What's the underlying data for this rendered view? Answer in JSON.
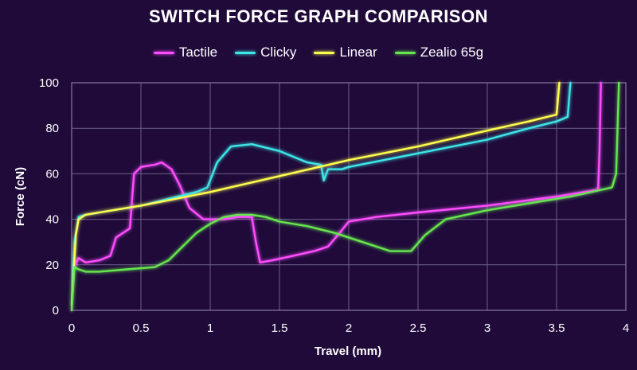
{
  "chart_data": {
    "type": "line",
    "title": "SWITCH FORCE GRAPH COMPARISON",
    "xlabel": "Travel (mm)",
    "ylabel": "Force (cN)",
    "xlim": [
      0,
      4
    ],
    "ylim": [
      0,
      100
    ],
    "x_ticks": [
      "0",
      "0.5",
      "1",
      "1.5",
      "2",
      "2.5",
      "3",
      "3.5",
      "4"
    ],
    "y_ticks": [
      "0",
      "20",
      "40",
      "60",
      "80",
      "100"
    ],
    "grid": true,
    "legend_position": "top-center",
    "series": [
      {
        "name": "Tactile",
        "color": "#ff4dff",
        "points": [
          [
            0.0,
            0
          ],
          [
            0.02,
            19
          ],
          [
            0.05,
            23
          ],
          [
            0.1,
            21
          ],
          [
            0.2,
            22
          ],
          [
            0.28,
            24
          ],
          [
            0.32,
            32
          ],
          [
            0.42,
            36
          ],
          [
            0.45,
            60
          ],
          [
            0.5,
            63
          ],
          [
            0.6,
            64
          ],
          [
            0.65,
            65
          ],
          [
            0.72,
            62
          ],
          [
            0.78,
            55
          ],
          [
            0.85,
            45
          ],
          [
            0.95,
            40
          ],
          [
            1.1,
            40
          ],
          [
            1.2,
            41
          ],
          [
            1.3,
            41
          ],
          [
            1.33,
            30
          ],
          [
            1.36,
            21
          ],
          [
            1.45,
            22
          ],
          [
            1.6,
            24
          ],
          [
            1.75,
            26
          ],
          [
            1.85,
            28
          ],
          [
            1.92,
            33
          ],
          [
            2.0,
            39
          ],
          [
            2.2,
            41
          ],
          [
            2.5,
            43
          ],
          [
            3.0,
            46
          ],
          [
            3.5,
            50
          ],
          [
            3.8,
            53
          ],
          [
            3.81,
            70
          ],
          [
            3.82,
            100
          ]
        ]
      },
      {
        "name": "Clicky",
        "color": "#3ee6e6",
        "points": [
          [
            0.0,
            3
          ],
          [
            0.02,
            30
          ],
          [
            0.05,
            41
          ],
          [
            0.1,
            42
          ],
          [
            0.3,
            44
          ],
          [
            0.5,
            46
          ],
          [
            0.7,
            49
          ],
          [
            0.9,
            52
          ],
          [
            0.98,
            54
          ],
          [
            1.05,
            65
          ],
          [
            1.15,
            72
          ],
          [
            1.3,
            73
          ],
          [
            1.5,
            70
          ],
          [
            1.7,
            65
          ],
          [
            1.8,
            64
          ],
          [
            1.82,
            57
          ],
          [
            1.85,
            62
          ],
          [
            1.95,
            62
          ],
          [
            2.0,
            63
          ],
          [
            2.5,
            69
          ],
          [
            3.0,
            75
          ],
          [
            3.3,
            80
          ],
          [
            3.5,
            83
          ],
          [
            3.58,
            85
          ],
          [
            3.6,
            100
          ]
        ]
      },
      {
        "name": "Linear",
        "color": "#ffff4d",
        "points": [
          [
            0.0,
            2
          ],
          [
            0.03,
            33
          ],
          [
            0.05,
            40
          ],
          [
            0.1,
            42
          ],
          [
            0.2,
            43
          ],
          [
            0.5,
            46
          ],
          [
            1.0,
            52
          ],
          [
            1.5,
            59
          ],
          [
            2.0,
            66
          ],
          [
            2.5,
            72
          ],
          [
            3.0,
            79
          ],
          [
            3.3,
            83
          ],
          [
            3.5,
            86
          ],
          [
            3.52,
            100
          ]
        ]
      },
      {
        "name": "Zealio 65g",
        "color": "#66e64d",
        "points": [
          [
            0.0,
            0
          ],
          [
            0.02,
            19
          ],
          [
            0.05,
            18
          ],
          [
            0.1,
            17
          ],
          [
            0.2,
            17
          ],
          [
            0.4,
            18
          ],
          [
            0.6,
            19
          ],
          [
            0.7,
            22
          ],
          [
            0.8,
            28
          ],
          [
            0.9,
            34
          ],
          [
            1.0,
            38
          ],
          [
            1.1,
            41
          ],
          [
            1.2,
            42
          ],
          [
            1.3,
            42
          ],
          [
            1.4,
            41
          ],
          [
            1.5,
            39
          ],
          [
            1.7,
            37
          ],
          [
            1.9,
            34
          ],
          [
            2.1,
            30
          ],
          [
            2.3,
            26
          ],
          [
            2.45,
            26
          ],
          [
            2.55,
            33
          ],
          [
            2.7,
            40
          ],
          [
            3.0,
            44
          ],
          [
            3.3,
            47
          ],
          [
            3.6,
            50
          ],
          [
            3.9,
            54
          ],
          [
            3.93,
            60
          ],
          [
            3.95,
            100
          ]
        ]
      }
    ]
  }
}
